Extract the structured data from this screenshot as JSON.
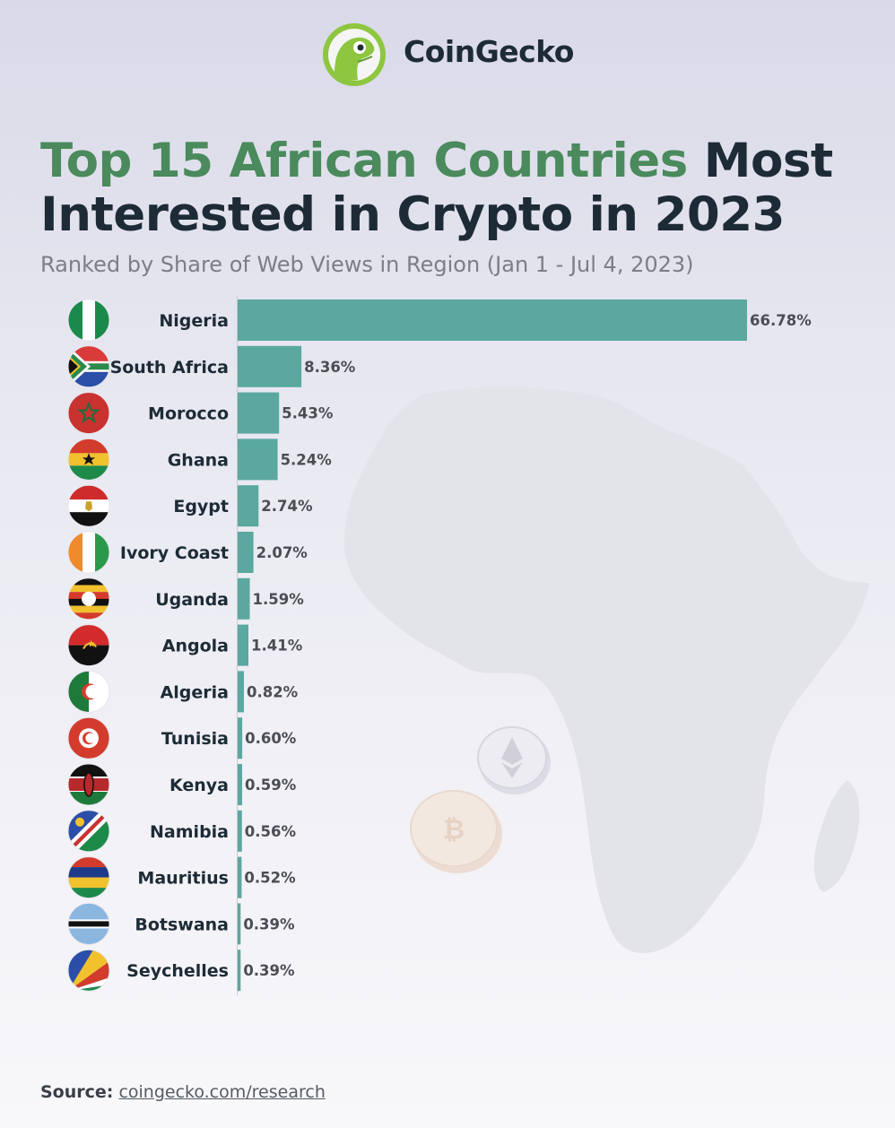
{
  "header": {
    "brand": "CoinGecko"
  },
  "title": {
    "highlight": "Top 15 African Countries",
    "rest": " Most Interested in Crypto in 2023"
  },
  "subtitle": "Ranked by Share of Web Views in Region (Jan 1 - Jul 4, 2023)",
  "source": {
    "label": "Source:",
    "link": "coingecko.com/research"
  },
  "colors": {
    "bar": "#5aa89f",
    "title_highlight": "#4a8a5c",
    "title": "#1d2b36"
  },
  "chart_data": {
    "type": "bar",
    "orientation": "horizontal",
    "categories": [
      "Nigeria",
      "South Africa",
      "Morocco",
      "Ghana",
      "Egypt",
      "Ivory Coast",
      "Uganda",
      "Angola",
      "Algeria",
      "Tunisia",
      "Kenya",
      "Namibia",
      "Mauritius",
      "Botswana",
      "Seychelles"
    ],
    "values": [
      66.78,
      8.36,
      5.43,
      5.24,
      2.74,
      2.07,
      1.59,
      1.41,
      0.82,
      0.6,
      0.59,
      0.56,
      0.52,
      0.39,
      0.39
    ],
    "value_labels": [
      "66.78%",
      "8.36%",
      "5.43%",
      "5.24%",
      "2.74%",
      "2.07%",
      "1.59%",
      "1.41%",
      "0.82%",
      "0.60%",
      "0.59%",
      "0.56%",
      "0.52%",
      "0.39%",
      "0.39%"
    ],
    "unit": "%",
    "flags": [
      "nigeria-flag-icon",
      "south-africa-flag-icon",
      "morocco-flag-icon",
      "ghana-flag-icon",
      "egypt-flag-icon",
      "ivory-coast-flag-icon",
      "uganda-flag-icon",
      "angola-flag-icon",
      "algeria-flag-icon",
      "tunisia-flag-icon",
      "kenya-flag-icon",
      "namibia-flag-icon",
      "mauritius-flag-icon",
      "botswana-flag-icon",
      "seychelles-flag-icon"
    ],
    "xlim": [
      0,
      66.78
    ],
    "grid": false,
    "legend": "none"
  }
}
